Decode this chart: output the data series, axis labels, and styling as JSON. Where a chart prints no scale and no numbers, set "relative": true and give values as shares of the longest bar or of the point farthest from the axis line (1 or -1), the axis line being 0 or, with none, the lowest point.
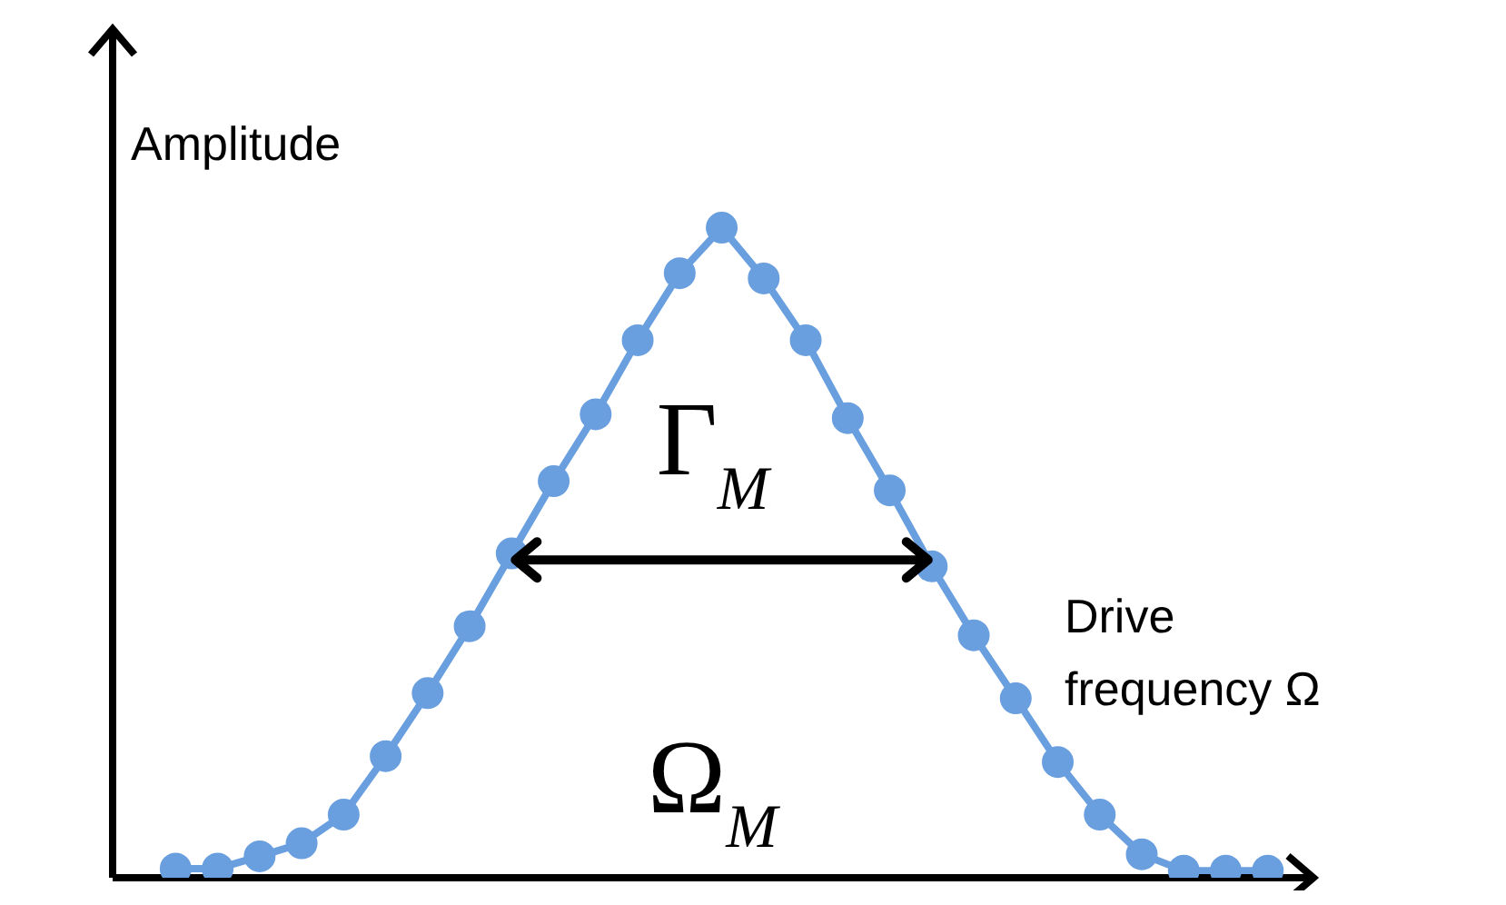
{
  "chart_data": {
    "type": "line",
    "relative": true,
    "xlabel": "Drive frequency Ω",
    "ylabel": "Amplitude",
    "categories": [
      null,
      null,
      null,
      null,
      null,
      null,
      null,
      null,
      null,
      null,
      null,
      null,
      null,
      null,
      null,
      null,
      null,
      null,
      null,
      null,
      null,
      null,
      null,
      null,
      null,
      null,
      null
    ],
    "series": [
      {
        "color": "#6a9fdf",
        "values": [
          0.014,
          0.014,
          0.033,
          0.053,
          0.097,
          0.187,
          0.284,
          0.387,
          0.499,
          0.61,
          0.713,
          0.827,
          0.93,
          1,
          0.922,
          0.827,
          0.707,
          0.596,
          0.479,
          0.373,
          0.276,
          0.178,
          0.097,
          0.036,
          0.011,
          0.011,
          0.011
        ]
      }
    ],
    "annotations": [
      "Γ$_{M}$",
      "Ω$_{M}$"
    ],
    "marker": "circle",
    "line_style": "solid",
    "grid": false,
    "legend": false
  }
}
